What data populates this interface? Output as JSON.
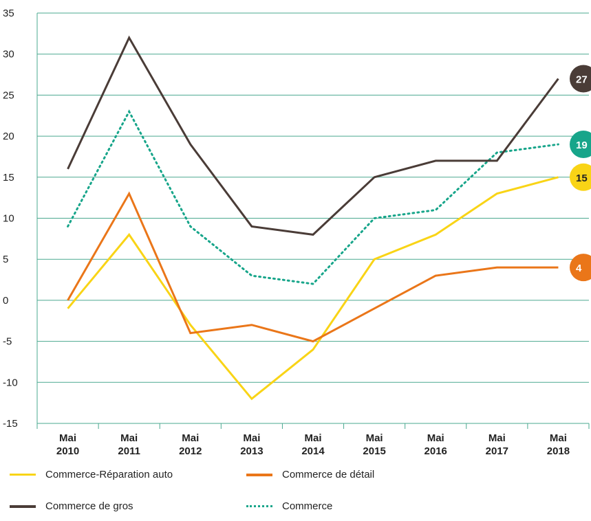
{
  "chart_data": {
    "type": "line",
    "categories": [
      "Mai\n2010",
      "Mai\n2011",
      "Mai\n2012",
      "Mai\n2013",
      "Mai\n2014",
      "Mai\n2015",
      "Mai\n2016",
      "Mai\n2017",
      "Mai\n2018"
    ],
    "ylim": [
      -15,
      35
    ],
    "yticks": [
      35,
      30,
      25,
      20,
      15,
      10,
      5,
      0,
      -5,
      -10,
      -15
    ],
    "grid": true,
    "legend_placement": "bottom",
    "series": [
      {
        "name": "Commerce-Réparation auto",
        "values": [
          -1,
          8,
          -3,
          -12,
          -6,
          5,
          8,
          13,
          15
        ],
        "color": "#f9d416",
        "style": "solid",
        "end_label": "15",
        "end_label_color": "#f9d416",
        "end_label_text_color": "#222222"
      },
      {
        "name": "Commerce de détail",
        "values": [
          0,
          13,
          -4,
          -3,
          -5,
          -1,
          3,
          4,
          4
        ],
        "color": "#ea7619",
        "style": "solid",
        "end_label": "4",
        "end_label_color": "#ea7619",
        "end_label_text_color": "#ffffff"
      },
      {
        "name": "Commerce de gros",
        "values": [
          16,
          32,
          19,
          9,
          8,
          15,
          17,
          17,
          27
        ],
        "color": "#4a3c37",
        "style": "solid",
        "end_label": "27",
        "end_label_color": "#4a3c37",
        "end_label_text_color": "#ffffff"
      },
      {
        "name": "Commerce",
        "values": [
          9,
          23,
          9,
          3,
          2,
          10,
          11,
          18,
          19
        ],
        "color": "#17a58a",
        "style": "dotted",
        "end_label": "19",
        "end_label_color": "#17a58a",
        "end_label_text_color": "#ffffff"
      }
    ]
  }
}
